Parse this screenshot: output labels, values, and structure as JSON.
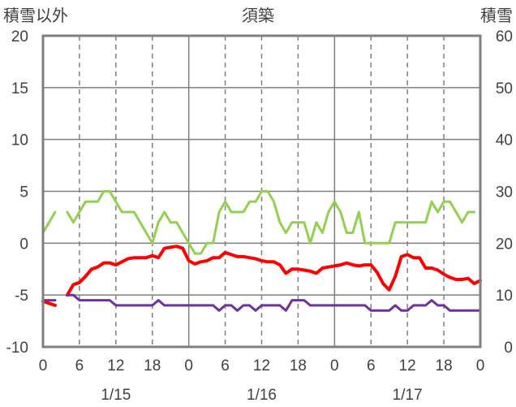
{
  "chart_data": {
    "type": "line",
    "title": "須築",
    "left_axis_label": "積雪以外",
    "right_axis_label": "積雪",
    "left_ylim": [
      -10,
      20
    ],
    "left_yticks": [
      "-10",
      "-5",
      "0",
      "5",
      "10",
      "15",
      "20"
    ],
    "right_ylim": [
      0,
      60
    ],
    "right_yticks": [
      "0",
      "10",
      "20",
      "30",
      "40",
      "50",
      "60"
    ],
    "x_range_hours": [
      0,
      72
    ],
    "x_tick_labels": [
      "0",
      "6",
      "12",
      "18",
      "0",
      "6",
      "12",
      "18",
      "0",
      "6",
      "12",
      "18",
      "0"
    ],
    "date_labels": [
      "1/15",
      "1/16",
      "1/17"
    ],
    "grid": true,
    "colors": {
      "green": "#92d050",
      "red": "#ff0000",
      "purple": "#7030a0",
      "frame": "#7f7f7f"
    },
    "series": [
      {
        "color": "green",
        "axis": "left",
        "segments": [
          [
            [
              0,
              1
            ],
            [
              1,
              2
            ],
            [
              2,
              3
            ]
          ],
          [
            [
              4,
              3
            ],
            [
              5,
              2
            ],
            [
              6,
              3
            ],
            [
              7,
              4
            ],
            [
              8,
              4
            ],
            [
              9,
              4
            ],
            [
              10,
              5
            ],
            [
              11,
              5
            ],
            [
              12,
              4
            ],
            [
              13,
              3
            ],
            [
              14,
              3
            ],
            [
              15,
              3
            ],
            [
              16,
              2
            ],
            [
              17,
              1
            ],
            [
              18,
              0
            ],
            [
              19,
              2
            ],
            [
              20,
              3
            ],
            [
              21,
              2
            ],
            [
              22,
              2
            ],
            [
              23,
              1
            ],
            [
              24,
              0
            ],
            [
              25,
              -1
            ],
            [
              26,
              -1
            ],
            [
              27,
              0
            ],
            [
              28,
              0
            ],
            [
              29,
              3
            ],
            [
              30,
              4
            ],
            [
              31,
              3
            ],
            [
              32,
              3
            ],
            [
              33,
              3
            ],
            [
              34,
              4
            ],
            [
              35,
              4
            ],
            [
              36,
              5
            ],
            [
              37,
              5
            ],
            [
              38,
              4
            ],
            [
              39,
              2
            ],
            [
              40,
              1
            ],
            [
              41,
              2
            ],
            [
              42,
              2
            ],
            [
              43,
              2
            ],
            [
              44,
              0
            ],
            [
              45,
              2
            ],
            [
              46,
              1
            ],
            [
              47,
              3
            ],
            [
              48,
              4
            ],
            [
              49,
              3
            ],
            [
              50,
              1
            ],
            [
              51,
              1
            ],
            [
              52,
              3
            ],
            [
              53,
              0
            ],
            [
              54,
              0
            ],
            [
              55,
              0
            ],
            [
              56,
              0
            ],
            [
              57,
              0
            ],
            [
              58,
              2
            ],
            [
              59,
              2
            ],
            [
              60,
              2
            ],
            [
              61,
              2
            ],
            [
              62,
              2
            ],
            [
              63,
              2
            ],
            [
              64,
              4
            ],
            [
              65,
              3
            ],
            [
              66,
              4
            ],
            [
              67,
              4
            ],
            [
              68,
              3
            ],
            [
              69,
              2
            ],
            [
              70,
              3
            ],
            [
              71,
              3
            ]
          ]
        ]
      },
      {
        "color": "red",
        "axis": "left",
        "segments": [
          [
            [
              0,
              -5.6
            ],
            [
              1,
              -5.8
            ],
            [
              2,
              -6
            ]
          ],
          [
            [
              4,
              -5
            ],
            [
              5,
              -4
            ],
            [
              6,
              -3.8
            ],
            [
              7,
              -3.2
            ],
            [
              8,
              -2.5
            ],
            [
              9,
              -2.3
            ],
            [
              10,
              -1.9
            ],
            [
              11,
              -1.9
            ],
            [
              12,
              -2.1
            ],
            [
              13,
              -1.8
            ],
            [
              14,
              -1.5
            ],
            [
              15,
              -1.4
            ],
            [
              16,
              -1.4
            ],
            [
              17,
              -1.4
            ],
            [
              18,
              -1.2
            ],
            [
              19,
              -1.4
            ],
            [
              20,
              -0.5
            ],
            [
              21,
              -0.4
            ],
            [
              22,
              -0.3
            ],
            [
              23,
              -0.5
            ],
            [
              24,
              -1.7
            ],
            [
              25,
              -2
            ],
            [
              26,
              -1.8
            ],
            [
              27,
              -1.7
            ],
            [
              28,
              -1.4
            ],
            [
              29,
              -1.4
            ],
            [
              30,
              -0.9
            ],
            [
              31,
              -1.1
            ],
            [
              32,
              -1.3
            ],
            [
              33,
              -1.3
            ],
            [
              34,
              -1.4
            ],
            [
              35,
              -1.5
            ],
            [
              36,
              -1.7
            ],
            [
              37,
              -1.8
            ],
            [
              38,
              -1.8
            ],
            [
              39,
              -2.1
            ],
            [
              40,
              -2.9
            ],
            [
              41,
              -2.5
            ],
            [
              42,
              -2.5
            ],
            [
              43,
              -2.6
            ],
            [
              44,
              -2.7
            ],
            [
              45,
              -2.9
            ],
            [
              46,
              -2.4
            ],
            [
              47,
              -2.3
            ],
            [
              48,
              -2.2
            ],
            [
              49,
              -2.1
            ],
            [
              50,
              -1.9
            ],
            [
              51,
              -2.1
            ],
            [
              52,
              -2.2
            ],
            [
              53,
              -2.1
            ],
            [
              54,
              -2.1
            ],
            [
              55,
              -2.8
            ],
            [
              56,
              -3.9
            ],
            [
              57,
              -4.5
            ],
            [
              58,
              -3.2
            ],
            [
              59,
              -1.3
            ],
            [
              60,
              -1.1
            ],
            [
              61,
              -1.4
            ],
            [
              62,
              -1.4
            ],
            [
              63,
              -2.4
            ],
            [
              64,
              -2.4
            ],
            [
              65,
              -2.6
            ],
            [
              66,
              -3
            ],
            [
              67,
              -3.3
            ],
            [
              68,
              -3.5
            ],
            [
              69,
              -3.5
            ],
            [
              70,
              -3.4
            ],
            [
              71,
              -3.9
            ],
            [
              72,
              -3.6
            ]
          ]
        ]
      },
      {
        "color": "purple",
        "axis": "right",
        "segments": [
          [
            [
              0,
              9
            ],
            [
              1,
              9
            ],
            [
              2,
              9
            ]
          ],
          [
            [
              4,
              10
            ],
            [
              5,
              10
            ],
            [
              6,
              9
            ],
            [
              7,
              9
            ],
            [
              8,
              9
            ],
            [
              9,
              9
            ],
            [
              10,
              9
            ],
            [
              11,
              9
            ],
            [
              12,
              8
            ],
            [
              13,
              8
            ],
            [
              14,
              8
            ],
            [
              15,
              8
            ],
            [
              16,
              8
            ],
            [
              17,
              8
            ],
            [
              18,
              8
            ],
            [
              19,
              9
            ],
            [
              20,
              8
            ],
            [
              21,
              8
            ],
            [
              22,
              8
            ],
            [
              23,
              8
            ],
            [
              24,
              8
            ],
            [
              25,
              8
            ],
            [
              26,
              8
            ],
            [
              27,
              8
            ],
            [
              28,
              8
            ],
            [
              29,
              7
            ],
            [
              30,
              8
            ],
            [
              31,
              8
            ],
            [
              32,
              7
            ],
            [
              33,
              8
            ],
            [
              34,
              8
            ],
            [
              35,
              7
            ],
            [
              36,
              8
            ],
            [
              37,
              8
            ],
            [
              38,
              8
            ],
            [
              39,
              8
            ],
            [
              40,
              7
            ],
            [
              41,
              9
            ],
            [
              42,
              9
            ],
            [
              43,
              9
            ],
            [
              44,
              8
            ],
            [
              45,
              8
            ],
            [
              46,
              8
            ],
            [
              47,
              8
            ],
            [
              48,
              8
            ],
            [
              49,
              8
            ],
            [
              50,
              8
            ],
            [
              51,
              8
            ],
            [
              52,
              8
            ],
            [
              53,
              8
            ],
            [
              54,
              7
            ],
            [
              55,
              7
            ],
            [
              56,
              7
            ],
            [
              57,
              7
            ],
            [
              58,
              8
            ],
            [
              59,
              7
            ],
            [
              60,
              7
            ],
            [
              61,
              8
            ],
            [
              62,
              8
            ],
            [
              63,
              8
            ],
            [
              64,
              9
            ],
            [
              65,
              8
            ],
            [
              66,
              8
            ],
            [
              67,
              7
            ],
            [
              68,
              7
            ],
            [
              69,
              7
            ],
            [
              70,
              7
            ],
            [
              71,
              7
            ],
            [
              72,
              7
            ]
          ]
        ]
      }
    ]
  }
}
